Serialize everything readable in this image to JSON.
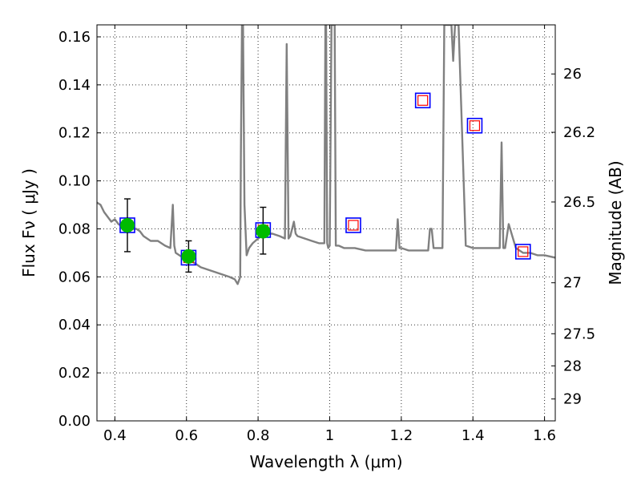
{
  "chart_data": {
    "type": "scatter",
    "xlabel": "Wavelength  λ (μm)",
    "ylabel": "Flux  Fν  ( μJy )",
    "y2label": "Magnitude (AB)",
    "xlim": [
      0.35,
      1.63
    ],
    "ylim": [
      0.0,
      0.165
    ],
    "grid": true,
    "x_ticks": [
      {
        "value": 0.4,
        "label": "0.4"
      },
      {
        "value": 0.6,
        "label": "0.6"
      },
      {
        "value": 0.8,
        "label": "0.8"
      },
      {
        "value": 1.0,
        "label": "1"
      },
      {
        "value": 1.2,
        "label": "1.2"
      },
      {
        "value": 1.4,
        "label": "1.4"
      },
      {
        "value": 1.6,
        "label": "1.6"
      }
    ],
    "y_ticks": [
      {
        "value": 0.0,
        "label": "0.00"
      },
      {
        "value": 0.02,
        "label": "0.02"
      },
      {
        "value": 0.04,
        "label": "0.04"
      },
      {
        "value": 0.06,
        "label": "0.06"
      },
      {
        "value": 0.08,
        "label": "0.08"
      },
      {
        "value": 0.1,
        "label": "0.10"
      },
      {
        "value": 0.12,
        "label": "0.12"
      },
      {
        "value": 0.14,
        "label": "0.14"
      },
      {
        "value": 0.16,
        "label": "0.16"
      }
    ],
    "mag_ticks": [
      {
        "value": 26,
        "label": "26"
      },
      {
        "value": 26.2,
        "label": "26.2"
      },
      {
        "value": 26.5,
        "label": "26.5"
      },
      {
        "value": 27,
        "label": "27"
      },
      {
        "value": 27.5,
        "label": "27.5"
      },
      {
        "value": 28,
        "label": "28"
      },
      {
        "value": 29,
        "label": "29"
      }
    ],
    "colors": {
      "model": "#808080",
      "observed": "#00bb00",
      "model_band_edge": "#0000ff",
      "model_band_inner": "#ff0000",
      "errorbar": "#000000"
    },
    "model_spectrum": {
      "x": [
        0.35,
        0.36,
        0.37,
        0.38,
        0.39,
        0.4,
        0.41,
        0.42,
        0.43,
        0.44,
        0.45,
        0.46,
        0.47,
        0.48,
        0.5,
        0.52,
        0.54,
        0.555,
        0.562,
        0.566,
        0.57,
        0.58,
        0.6,
        0.62,
        0.64,
        0.66,
        0.68,
        0.7,
        0.72,
        0.735,
        0.743,
        0.75,
        0.752,
        0.755,
        0.758,
        0.762,
        0.768,
        0.775,
        0.785,
        0.8,
        0.82,
        0.84,
        0.86,
        0.875,
        0.88,
        0.885,
        0.89,
        0.9,
        0.905,
        0.91,
        0.93,
        0.95,
        0.97,
        0.985,
        0.988,
        0.99,
        0.993,
        0.996,
        1.0,
        1.005,
        1.008,
        1.011,
        1.014,
        1.017,
        1.02,
        1.025,
        1.04,
        1.07,
        1.1,
        1.13,
        1.16,
        1.185,
        1.19,
        1.195,
        1.2,
        1.22,
        1.24,
        1.26,
        1.275,
        1.28,
        1.285,
        1.29,
        1.31,
        1.315,
        1.32,
        1.33,
        1.34,
        1.345,
        1.35,
        1.355,
        1.36,
        1.38,
        1.4,
        1.42,
        1.44,
        1.46,
        1.475,
        1.48,
        1.485,
        1.49,
        1.5,
        1.52,
        1.54,
        1.56,
        1.58,
        1.6,
        1.63
      ],
      "y": [
        0.091,
        0.09,
        0.087,
        0.085,
        0.083,
        0.084,
        0.082,
        0.081,
        0.08,
        0.081,
        0.08,
        0.08,
        0.079,
        0.077,
        0.075,
        0.075,
        0.073,
        0.072,
        0.09,
        0.073,
        0.07,
        0.069,
        0.067,
        0.066,
        0.064,
        0.063,
        0.062,
        0.061,
        0.06,
        0.059,
        0.057,
        0.06,
        0.11,
        0.165,
        0.165,
        0.09,
        0.069,
        0.072,
        0.074,
        0.076,
        0.078,
        0.078,
        0.077,
        0.076,
        0.157,
        0.076,
        0.077,
        0.083,
        0.078,
        0.077,
        0.076,
        0.075,
        0.074,
        0.074,
        0.165,
        0.165,
        0.074,
        0.072,
        0.073,
        0.165,
        0.165,
        0.165,
        0.165,
        0.073,
        0.073,
        0.073,
        0.072,
        0.072,
        0.071,
        0.071,
        0.071,
        0.071,
        0.084,
        0.072,
        0.072,
        0.071,
        0.071,
        0.071,
        0.071,
        0.08,
        0.08,
        0.072,
        0.072,
        0.072,
        0.165,
        0.165,
        0.165,
        0.15,
        0.165,
        0.165,
        0.165,
        0.073,
        0.072,
        0.072,
        0.072,
        0.072,
        0.072,
        0.116,
        0.072,
        0.072,
        0.082,
        0.072,
        0.07,
        0.07,
        0.069,
        0.069,
        0.068
      ]
    },
    "observed_points": [
      {
        "x": 0.435,
        "y": 0.0815,
        "err_low": 0.0705,
        "err_high": 0.0925
      },
      {
        "x": 0.606,
        "y": 0.0685,
        "err_low": 0.062,
        "err_high": 0.075
      },
      {
        "x": 0.814,
        "y": 0.079,
        "err_low": 0.0695,
        "err_high": 0.089
      }
    ],
    "model_band_points": [
      {
        "x": 0.435,
        "y": 0.0815
      },
      {
        "x": 0.606,
        "y": 0.068
      },
      {
        "x": 0.814,
        "y": 0.0795
      },
      {
        "x": 1.066,
        "y": 0.0815
      },
      {
        "x": 1.26,
        "y": 0.1335
      },
      {
        "x": 1.405,
        "y": 0.123
      },
      {
        "x": 1.54,
        "y": 0.0705
      }
    ]
  }
}
